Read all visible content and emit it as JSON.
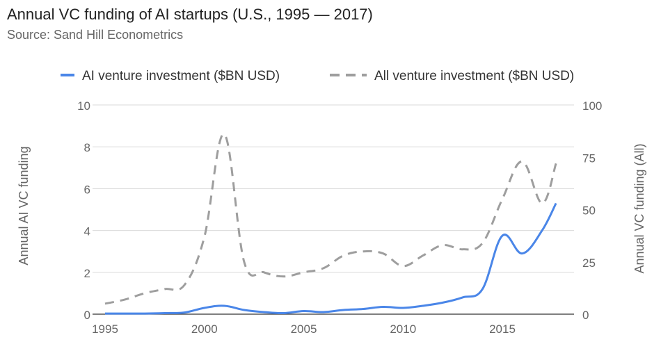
{
  "title": "Annual VC funding of AI startups (U.S., 1995 — 2017)",
  "subtitle": "Source: Sand Hill Econometrics",
  "colors": {
    "ai_series": "#4a86e8",
    "all_series": "#9e9e9e",
    "grid": "#d9d9d9",
    "axis_text": "#666666",
    "title_text": "#222222"
  },
  "chart_data": {
    "type": "line",
    "title": "Annual VC funding of AI startups (U.S., 1995 — 2017)",
    "subtitle": "Source: Sand Hill Econometrics",
    "legend_position": "top",
    "grid": true,
    "x_label": "",
    "x_ticks": [
      "1995",
      "2000",
      "2005",
      "2010",
      "2015"
    ],
    "x_range": [
      1995,
      2017.7
    ],
    "y_left": {
      "label": "Annual AI VC funding",
      "range": [
        0,
        10
      ],
      "ticks": [
        "0",
        "2",
        "4",
        "6",
        "8",
        "10"
      ]
    },
    "y_right": {
      "label": "Annual VC funding (All)",
      "range": [
        0,
        100
      ],
      "ticks": [
        "0",
        "25",
        "50",
        "75",
        "100"
      ]
    },
    "series": [
      {
        "name": "AI venture investment ($BN USD)",
        "axis": "left",
        "style": "solid",
        "color": "#4a86e8",
        "x": [
          1995,
          1996,
          1997,
          1998,
          1999,
          2000,
          2001,
          2002,
          2003,
          2004,
          2005,
          2006,
          2007,
          2008,
          2009,
          2010,
          2011,
          2012,
          2013,
          2014,
          2015,
          2016,
          2017,
          2017.7
        ],
        "y": [
          0.03,
          0.03,
          0.03,
          0.05,
          0.08,
          0.3,
          0.4,
          0.2,
          0.1,
          0.05,
          0.15,
          0.1,
          0.2,
          0.25,
          0.35,
          0.3,
          0.4,
          0.55,
          0.8,
          1.2,
          3.75,
          2.9,
          4.0,
          5.3
        ]
      },
      {
        "name": "All venture investment ($BN USD)",
        "axis": "right",
        "style": "dashed",
        "color": "#9e9e9e",
        "x": [
          1995,
          1996,
          1997,
          1998,
          1999,
          2000,
          2001,
          2002,
          2003,
          2004,
          2005,
          2006,
          2007,
          2008,
          2009,
          2010,
          2011,
          2012,
          2013,
          2014,
          2015,
          2016,
          2017,
          2017.7
        ],
        "y": [
          5,
          7,
          10,
          12,
          14,
          37,
          86,
          25,
          20,
          18,
          20,
          22,
          28,
          30,
          29,
          23,
          28,
          33,
          31,
          34,
          55,
          73,
          53,
          72
        ]
      }
    ]
  }
}
